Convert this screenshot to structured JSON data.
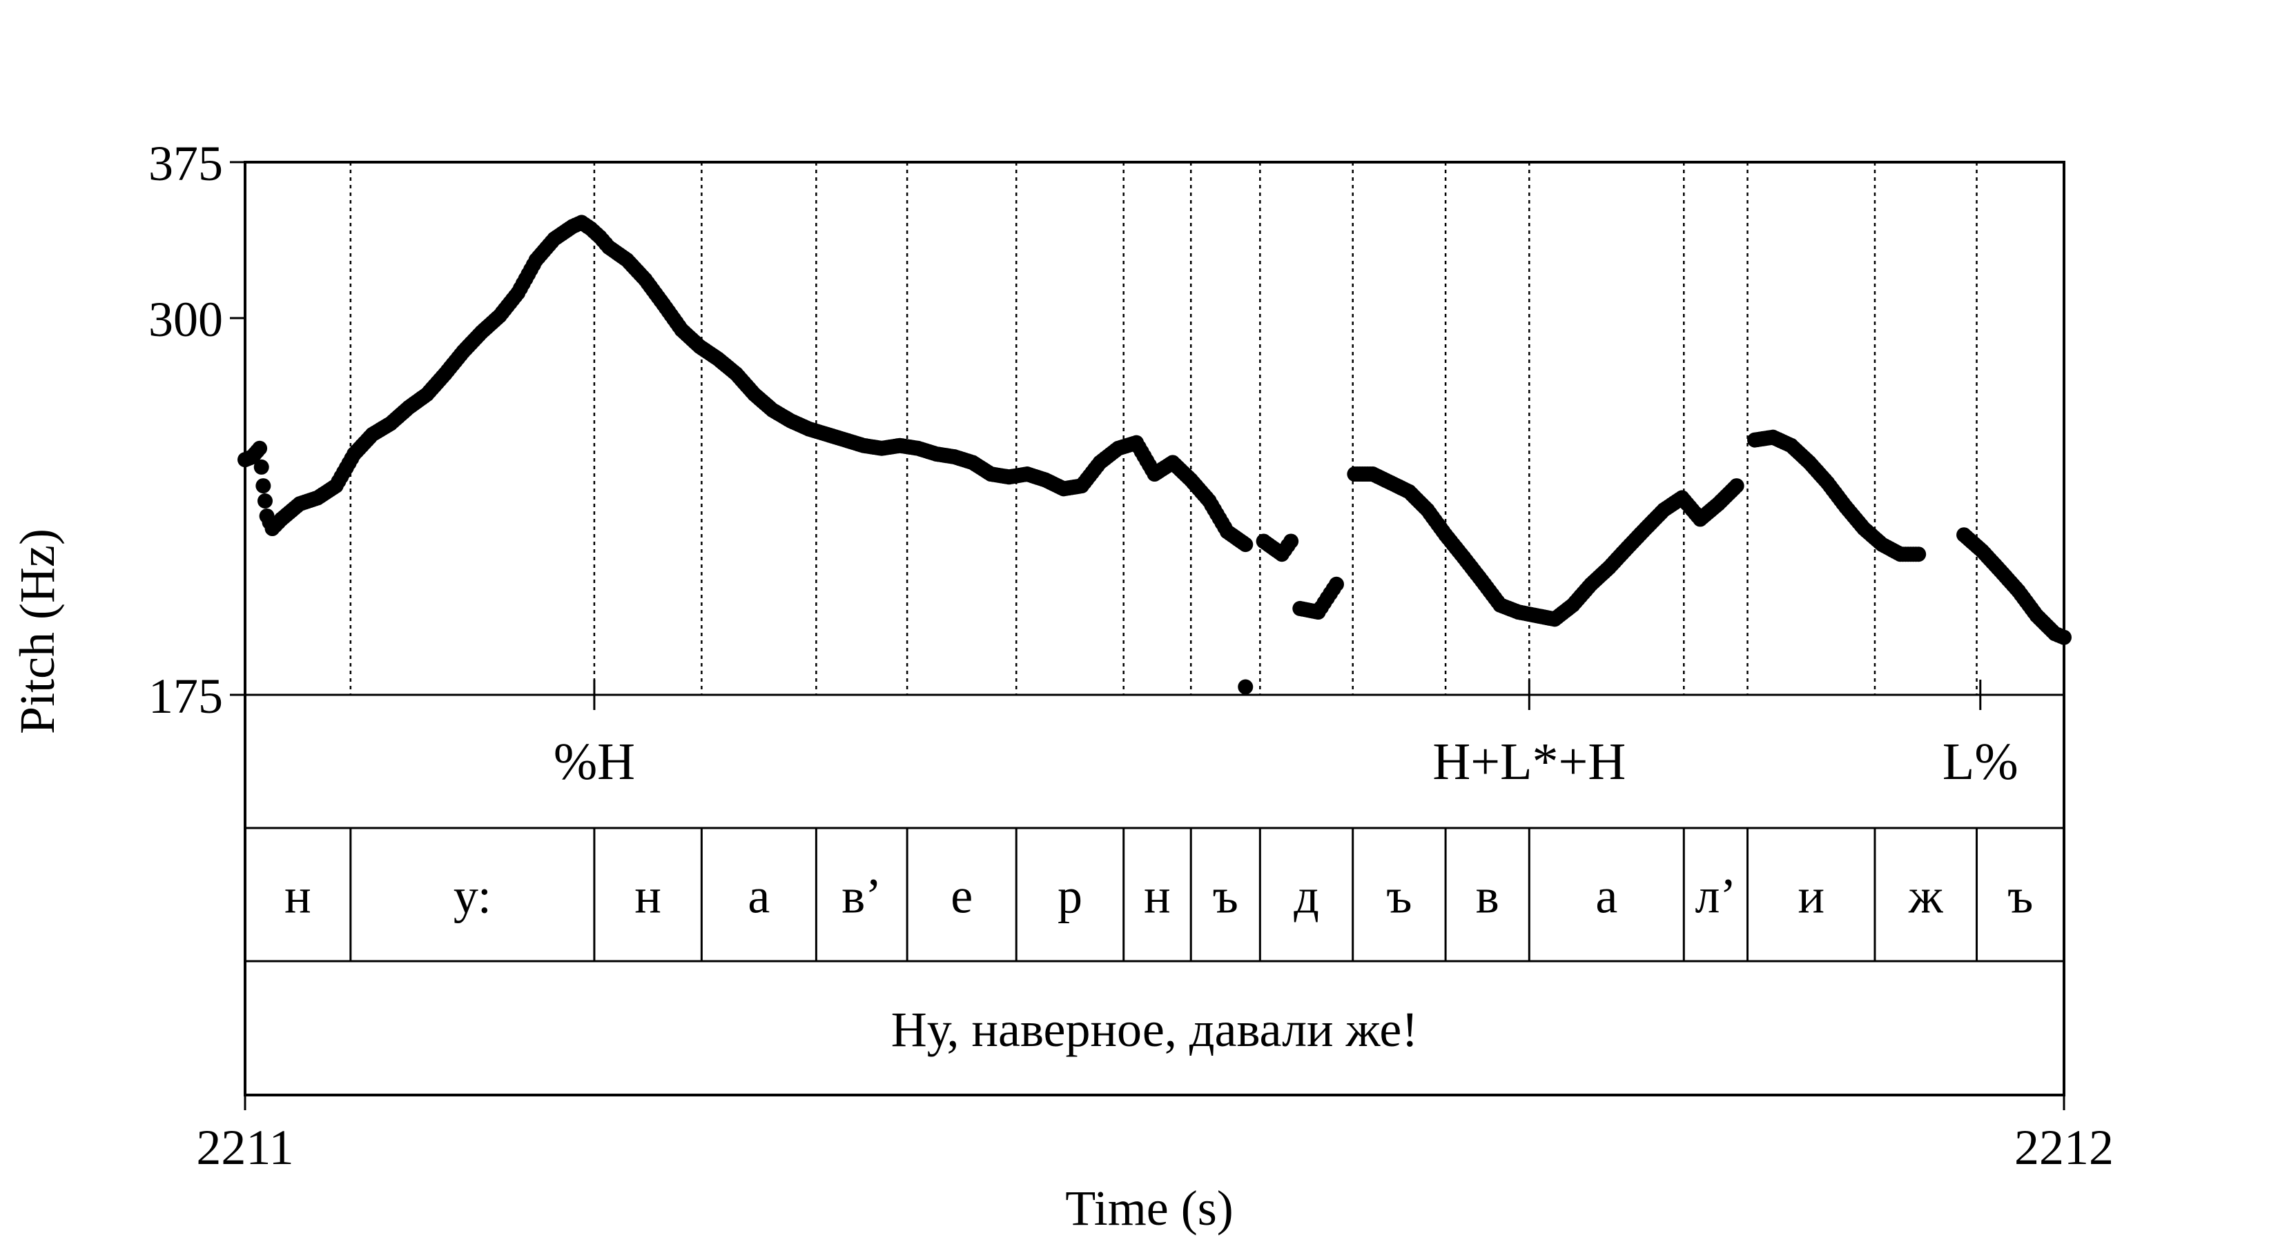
{
  "chart_data": {
    "type": "scatter",
    "xlabel": "Time (s)",
    "ylabel": "Pitch (Hz)",
    "xlim": [
      2211,
      2212
    ],
    "ylim": [
      175,
      375
    ],
    "x_ticks": [
      "2211",
      "2212"
    ],
    "y_ticks": [
      "375",
      "300",
      "175"
    ],
    "y_tick_values": [
      375,
      300,
      175
    ],
    "grid": "dotted vertical lines at segment boundaries",
    "tones": [
      {
        "label": "%H",
        "time": 2211.192
      },
      {
        "label": "H+L*+H",
        "time": 2211.706
      },
      {
        "label": "L%",
        "time": 2211.954
      }
    ],
    "segments": [
      {
        "label": "н",
        "start": 2211.0,
        "end": 2211.058
      },
      {
        "label": "у:",
        "start": 2211.058,
        "end": 2211.192
      },
      {
        "label": "н",
        "start": 2211.192,
        "end": 2211.251
      },
      {
        "label": "а",
        "start": 2211.251,
        "end": 2211.314
      },
      {
        "label": "в’",
        "start": 2211.314,
        "end": 2211.364
      },
      {
        "label": "е",
        "start": 2211.364,
        "end": 2211.424
      },
      {
        "label": "р",
        "start": 2211.424,
        "end": 2211.483
      },
      {
        "label": "н",
        "start": 2211.483,
        "end": 2211.52
      },
      {
        "label": "ъ",
        "start": 2211.52,
        "end": 2211.558
      },
      {
        "label": "д",
        "start": 2211.558,
        "end": 2211.609
      },
      {
        "label": "ъ",
        "start": 2211.609,
        "end": 2211.66
      },
      {
        "label": "в",
        "start": 2211.66,
        "end": 2211.706
      },
      {
        "label": "а",
        "start": 2211.706,
        "end": 2211.791
      },
      {
        "label": "л’",
        "start": 2211.791,
        "end": 2211.826
      },
      {
        "label": "и",
        "start": 2211.826,
        "end": 2211.896
      },
      {
        "label": "ж",
        "start": 2211.896,
        "end": 2211.952
      },
      {
        "label": "ъ",
        "start": 2211.952,
        "end": 2212.0
      }
    ],
    "sentence": "Ну, наверное, давали же!",
    "pitch_points": [
      [
        2211.0,
        245
      ],
      [
        2211.004,
        246
      ],
      [
        2211.008,
        249
      ],
      [
        2211.01,
        236
      ],
      [
        2211.012,
        226
      ],
      [
        2211.015,
        222
      ],
      [
        2211.02,
        225
      ],
      [
        2211.03,
        230
      ],
      [
        2211.04,
        232
      ],
      [
        2211.05,
        236
      ],
      [
        2211.06,
        247
      ],
      [
        2211.07,
        254
      ],
      [
        2211.08,
        258
      ],
      [
        2211.09,
        264
      ],
      [
        2211.1,
        269
      ],
      [
        2211.11,
        277
      ],
      [
        2211.12,
        286
      ],
      [
        2211.13,
        294
      ],
      [
        2211.14,
        301
      ],
      [
        2211.15,
        311
      ],
      [
        2211.16,
        326
      ],
      [
        2211.17,
        336
      ],
      [
        2211.18,
        342
      ],
      [
        2211.185,
        344
      ],
      [
        2211.19,
        341
      ],
      [
        2211.195,
        337
      ],
      [
        2211.2,
        332
      ],
      [
        2211.21,
        326
      ],
      [
        2211.22,
        317
      ],
      [
        2211.23,
        306
      ],
      [
        2211.24,
        295
      ],
      [
        2211.25,
        288
      ],
      [
        2211.26,
        283
      ],
      [
        2211.27,
        277
      ],
      [
        2211.28,
        269
      ],
      [
        2211.29,
        263
      ],
      [
        2211.3,
        259
      ],
      [
        2211.31,
        256
      ],
      [
        2211.32,
        254
      ],
      [
        2211.33,
        252
      ],
      [
        2211.34,
        250
      ],
      [
        2211.35,
        249
      ],
      [
        2211.36,
        250
      ],
      [
        2211.37,
        249
      ],
      [
        2211.38,
        247
      ],
      [
        2211.39,
        246
      ],
      [
        2211.4,
        244
      ],
      [
        2211.41,
        240
      ],
      [
        2211.42,
        239
      ],
      [
        2211.43,
        240
      ],
      [
        2211.44,
        238
      ],
      [
        2211.45,
        235
      ],
      [
        2211.46,
        236
      ],
      [
        2211.47,
        244
      ],
      [
        2211.48,
        249
      ],
      [
        2211.49,
        251
      ],
      [
        2211.5,
        240
      ],
      [
        2211.51,
        244
      ],
      [
        2211.52,
        238
      ],
      [
        2211.53,
        231
      ],
      [
        2211.54,
        221
      ],
      [
        2211.55,
        217
      ],
      [
        2211.56,
        218
      ],
      [
        2211.57,
        214
      ],
      [
        2211.575,
        218
      ],
      [
        2211.55,
        177
      ],
      [
        2211.58,
        198
      ],
      [
        2211.59,
        197
      ],
      [
        2211.595,
        201
      ],
      [
        2211.6,
        205
      ],
      [
        2211.61,
        240
      ],
      [
        2211.62,
        240
      ],
      [
        2211.63,
        237
      ],
      [
        2211.64,
        234
      ],
      [
        2211.65,
        228
      ],
      [
        2211.66,
        220
      ],
      [
        2211.67,
        213
      ],
      [
        2211.68,
        206
      ],
      [
        2211.69,
        199
      ],
      [
        2211.7,
        197
      ],
      [
        2211.71,
        196
      ],
      [
        2211.72,
        195
      ],
      [
        2211.73,
        199
      ],
      [
        2211.74,
        205
      ],
      [
        2211.75,
        210
      ],
      [
        2211.76,
        216
      ],
      [
        2211.77,
        222
      ],
      [
        2211.78,
        228
      ],
      [
        2211.79,
        232
      ],
      [
        2211.8,
        225
      ],
      [
        2211.81,
        230
      ],
      [
        2211.82,
        236
      ],
      [
        2211.83,
        252
      ],
      [
        2211.84,
        253
      ],
      [
        2211.85,
        250
      ],
      [
        2211.86,
        244
      ],
      [
        2211.87,
        237
      ],
      [
        2211.88,
        229
      ],
      [
        2211.89,
        222
      ],
      [
        2211.9,
        217
      ],
      [
        2211.91,
        214
      ],
      [
        2211.92,
        214
      ],
      [
        2211.945,
        220
      ],
      [
        2211.955,
        215
      ],
      [
        2211.965,
        209
      ],
      [
        2211.975,
        203
      ],
      [
        2211.985,
        196
      ],
      [
        2211.995,
        191
      ],
      [
        2212.0,
        190
      ]
    ]
  }
}
